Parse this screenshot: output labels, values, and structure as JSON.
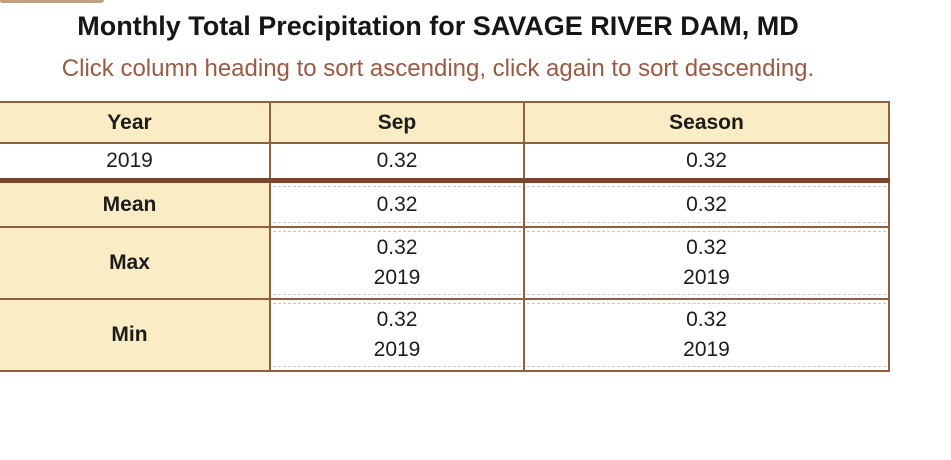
{
  "header": {
    "title": "Monthly Total Precipitation for SAVAGE RIVER DAM, MD",
    "subtitle": "Click column heading to sort ascending, click again to sort descending."
  },
  "table": {
    "columns": [
      "Year",
      "Sep",
      "Season"
    ],
    "rows": [
      {
        "label": "2019",
        "cells": [
          [
            "0.32"
          ],
          [
            "0.32"
          ]
        ]
      }
    ],
    "summary_rows": [
      {
        "label": "Mean",
        "cells": [
          [
            "0.32"
          ],
          [
            "0.32"
          ]
        ]
      },
      {
        "label": "Max",
        "cells": [
          [
            "0.32",
            "2019"
          ],
          [
            "0.32",
            "2019"
          ]
        ]
      },
      {
        "label": "Min",
        "cells": [
          [
            "0.32",
            "2019"
          ],
          [
            "0.32",
            "2019"
          ]
        ]
      }
    ]
  },
  "colors": {
    "header_bg": "#faecc5",
    "border_thin": "#8e5f40",
    "border_thick": "#78462a",
    "subtitle_text": "#9a5a44",
    "tab_edge": "#c09e7e"
  }
}
